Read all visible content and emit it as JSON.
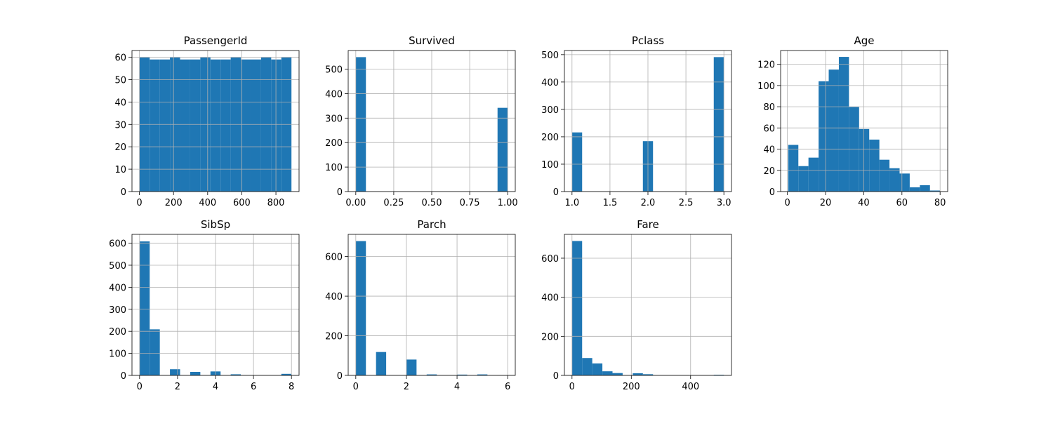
{
  "chart_data": [
    {
      "type": "histogram",
      "title": "PassengerId",
      "color": "#1f77b4",
      "grid": true,
      "bins": [
        1,
        60.33,
        119.67,
        179,
        238.33,
        297.67,
        357,
        416.33,
        475.67,
        535,
        594.33,
        653.67,
        713,
        772.33,
        831.67,
        891
      ],
      "counts": [
        60,
        59,
        59,
        60,
        59,
        59,
        60,
        59,
        59,
        60,
        59,
        59,
        60,
        59,
        60
      ],
      "xlim": [
        -43.5,
        935.5
      ],
      "ylim": [
        0,
        63
      ],
      "xticks": [
        0,
        200,
        400,
        600,
        800
      ],
      "yticks": [
        0,
        10,
        20,
        30,
        40,
        50,
        60
      ]
    },
    {
      "type": "histogram",
      "title": "Survived",
      "color": "#1f77b4",
      "grid": true,
      "bins": [
        0,
        0.0667,
        0.1333,
        0.2,
        0.2667,
        0.3333,
        0.4,
        0.4667,
        0.5333,
        0.6,
        0.6667,
        0.7333,
        0.8,
        0.8667,
        0.9333,
        1
      ],
      "counts": [
        549,
        0,
        0,
        0,
        0,
        0,
        0,
        0,
        0,
        0,
        0,
        0,
        0,
        0,
        342
      ],
      "xlim": [
        -0.05,
        1.05
      ],
      "ylim": [
        0,
        576
      ],
      "xticks": [
        {
          "value": 0,
          "label": "0.00"
        },
        {
          "value": 0.25,
          "label": "0.25"
        },
        {
          "value": 0.5,
          "label": "0.50"
        },
        {
          "value": 0.75,
          "label": "0.75"
        },
        {
          "value": 1,
          "label": "1.00"
        }
      ],
      "yticks": [
        0,
        100,
        200,
        300,
        400,
        500
      ]
    },
    {
      "type": "histogram",
      "title": "Pclass",
      "color": "#1f77b4",
      "grid": true,
      "bins": [
        1,
        1.1333,
        1.2667,
        1.4,
        1.5333,
        1.6667,
        1.8,
        1.9333,
        2.0667,
        2.2,
        2.3333,
        2.4667,
        2.6,
        2.7333,
        2.8667,
        3
      ],
      "counts": [
        216,
        0,
        0,
        0,
        0,
        0,
        0,
        184,
        0,
        0,
        0,
        0,
        0,
        0,
        491
      ],
      "xlim": [
        0.9,
        3.1
      ],
      "ylim": [
        0,
        515
      ],
      "xticks": [
        {
          "value": 1,
          "label": "1.0"
        },
        {
          "value": 1.5,
          "label": "1.5"
        },
        {
          "value": 2,
          "label": "2.0"
        },
        {
          "value": 2.5,
          "label": "2.5"
        },
        {
          "value": 3,
          "label": "3.0"
        }
      ],
      "yticks": [
        0,
        100,
        200,
        300,
        400,
        500
      ]
    },
    {
      "type": "histogram",
      "title": "Age",
      "color": "#1f77b4",
      "grid": true,
      "bins": [
        0.42,
        5.73,
        11.03,
        16.34,
        21.64,
        26.95,
        32.25,
        37.56,
        42.86,
        48.17,
        53.47,
        58.78,
        64.08,
        69.39,
        74.69,
        80
      ],
      "counts": [
        44,
        24,
        32,
        104,
        115,
        127,
        80,
        59,
        49,
        30,
        22,
        17,
        4,
        6,
        1
      ],
      "xlim": [
        -3.56,
        83.98
      ],
      "ylim": [
        0,
        133
      ],
      "xticks": [
        0,
        20,
        40,
        60,
        80
      ],
      "yticks": [
        0,
        20,
        40,
        60,
        80,
        100,
        120
      ]
    },
    {
      "type": "histogram",
      "title": "SibSp",
      "color": "#1f77b4",
      "grid": true,
      "bins": [
        0,
        0.5333,
        1.0667,
        1.6,
        2.1333,
        2.6667,
        3.2,
        3.7333,
        4.2667,
        4.8,
        5.3333,
        5.8667,
        6.4,
        6.9333,
        7.4667,
        8
      ],
      "counts": [
        608,
        209,
        0,
        28,
        0,
        16,
        0,
        18,
        0,
        5,
        0,
        0,
        0,
        0,
        7
      ],
      "xlim": [
        -0.4,
        8.4
      ],
      "ylim": [
        0,
        640
      ],
      "xticks": [
        0,
        2,
        4,
        6,
        8
      ],
      "yticks": [
        0,
        100,
        200,
        300,
        400,
        500,
        600
      ]
    },
    {
      "type": "histogram",
      "title": "Parch",
      "color": "#1f77b4",
      "grid": true,
      "bins": [
        0,
        0.4,
        0.8,
        1.2,
        1.6,
        2,
        2.4,
        2.8,
        3.2,
        3.6,
        4,
        4.4,
        4.8,
        5.2,
        5.6,
        6
      ],
      "counts": [
        678,
        0,
        118,
        0,
        0,
        80,
        0,
        5,
        0,
        0,
        4,
        0,
        5,
        0,
        1
      ],
      "xlim": [
        -0.3,
        6.3
      ],
      "ylim": [
        0,
        712
      ],
      "xticks": [
        0,
        2,
        4,
        6
      ],
      "yticks": [
        0,
        200,
        400,
        600
      ]
    },
    {
      "type": "histogram",
      "title": "Fare",
      "color": "#1f77b4",
      "grid": true,
      "bins": [
        0,
        34.16,
        68.31,
        102.47,
        136.62,
        170.78,
        204.93,
        239.09,
        273.24,
        307.4,
        341.55,
        375.71,
        409.86,
        444.02,
        478.17,
        512.33
      ],
      "counts": [
        688,
        89,
        61,
        21,
        12,
        0,
        11,
        6,
        0,
        0,
        0,
        0,
        0,
        0,
        3
      ],
      "xlim": [
        -25.6,
        537.9
      ],
      "ylim": [
        0,
        722
      ],
      "xticks": [
        0,
        200,
        400
      ],
      "yticks": [
        0,
        200,
        400,
        600
      ]
    }
  ]
}
